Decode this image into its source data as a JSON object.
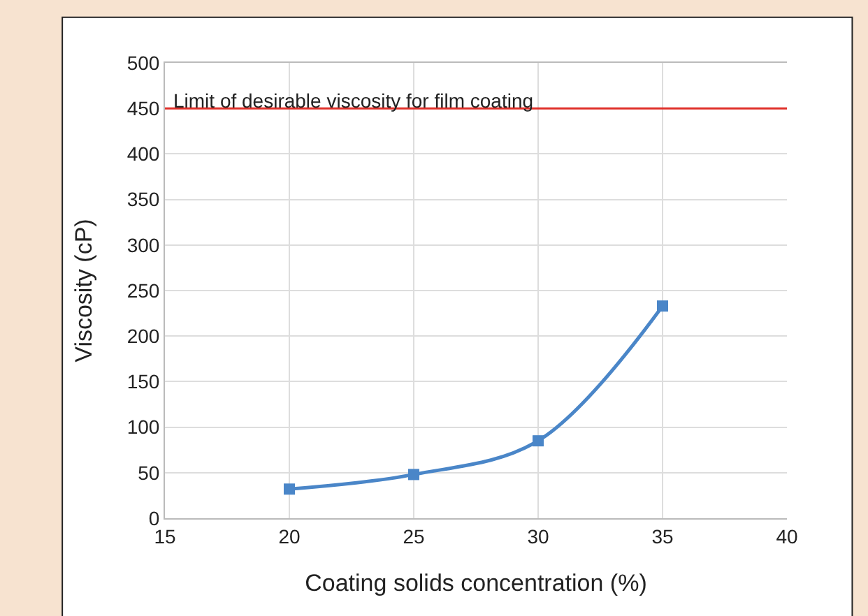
{
  "chart_data": {
    "type": "line",
    "xlabel": "Coating solids concentration (%)",
    "ylabel": "Viscosity (cP)",
    "x": [
      20,
      25,
      30,
      35
    ],
    "series": [
      {
        "color": "#4a86c8",
        "values": [
          32,
          48,
          85,
          233
        ]
      }
    ],
    "xlim": [
      15,
      40
    ],
    "xticks": [
      15,
      20,
      25,
      30,
      35,
      40
    ],
    "ylim": [
      0,
      500
    ],
    "yticks": [
      0,
      50,
      100,
      150,
      200,
      250,
      300,
      350,
      400,
      450,
      500
    ],
    "ref_lines": [
      {
        "axis": "y",
        "value": 450,
        "label": "Limit of desirable viscosity for film coating",
        "color": "#e0302a"
      }
    ],
    "grid": true,
    "marker": "square",
    "line_style": "solid",
    "legend": false
  }
}
